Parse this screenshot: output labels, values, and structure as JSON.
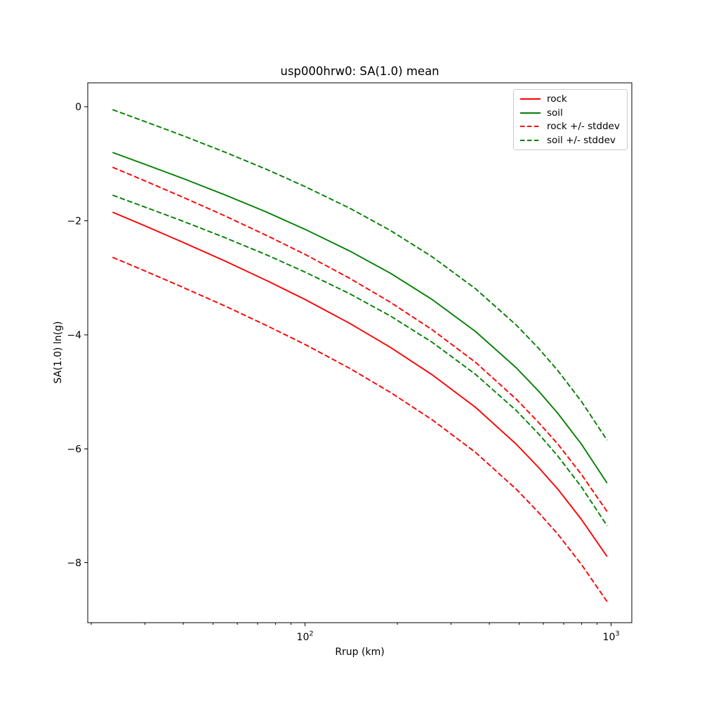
{
  "figure": {
    "title": "usp000hrw0: SA(1.0) mean",
    "xlabel": "Rrup (km)",
    "ylabel": "SA(1.0) ln(g)"
  },
  "chart_data": {
    "type": "line",
    "title": "usp000hrw0: SA(1.0) mean",
    "xlabel": "Rrup (km)",
    "ylabel": "SA(1.0) ln(g)",
    "x_scale": "log",
    "y_scale": "linear",
    "xlim": [
      19.5,
      1168
    ],
    "ylim": [
      -9.05,
      0.42
    ],
    "grid": false,
    "legend_position": "upper right",
    "colors": {
      "rock": "#ff0000",
      "soil": "#008000",
      "spine": "#000000",
      "legend_border": "#cbcbcb"
    },
    "rock_stddev": 0.79,
    "soil_stddev": 0.75,
    "x": [
      23.5,
      30,
      40,
      55,
      75,
      100,
      140,
      190,
      260,
      360,
      490,
      580,
      670,
      800,
      970
    ],
    "series": [
      {
        "id": "rock",
        "legend": "rock",
        "color": "#ff0000",
        "dashed": false,
        "curves": {
          "mean": [
            -1.85,
            -2.09,
            -2.38,
            -2.71,
            -3.05,
            -3.38,
            -3.8,
            -4.22,
            -4.7,
            -5.27,
            -5.92,
            -6.33,
            -6.71,
            -7.24,
            -7.89
          ]
        }
      },
      {
        "id": "soil",
        "legend": "soil",
        "color": "#008000",
        "dashed": false,
        "curves": {
          "mean": [
            -0.8,
            -1.01,
            -1.26,
            -1.55,
            -1.85,
            -2.15,
            -2.53,
            -2.92,
            -3.38,
            -3.94,
            -4.58,
            -4.99,
            -5.38,
            -5.92,
            -6.6
          ]
        }
      },
      {
        "id": "rock-stddev",
        "legend": "rock +/- stddev",
        "color": "#ff0000",
        "dashed": true,
        "curves": {
          "plus": [
            -1.06,
            -1.3,
            -1.59,
            -1.92,
            -2.26,
            -2.59,
            -3.01,
            -3.43,
            -3.91,
            -4.48,
            -5.13,
            -5.54,
            -5.92,
            -6.45,
            -7.1
          ],
          "minus": [
            -2.64,
            -2.88,
            -3.17,
            -3.5,
            -3.84,
            -4.17,
            -4.59,
            -5.01,
            -5.49,
            -6.06,
            -6.71,
            -7.12,
            -7.5,
            -8.03,
            -8.68
          ]
        }
      },
      {
        "id": "soil-stddev",
        "legend": "soil +/- stddev",
        "color": "#008000",
        "dashed": true,
        "curves": {
          "plus": [
            -0.05,
            -0.26,
            -0.51,
            -0.8,
            -1.1,
            -1.4,
            -1.78,
            -2.17,
            -2.63,
            -3.19,
            -3.83,
            -4.24,
            -4.63,
            -5.17,
            -5.85
          ],
          "minus": [
            -1.55,
            -1.76,
            -2.01,
            -2.3,
            -2.6,
            -2.9,
            -3.28,
            -3.67,
            -4.13,
            -4.69,
            -5.33,
            -5.74,
            -6.13,
            -6.67,
            -7.35
          ]
        }
      }
    ],
    "axes": {
      "y_ticks": [
        {
          "value": 0,
          "label": "0"
        },
        {
          "value": -2,
          "label": "−2"
        },
        {
          "value": -4,
          "label": "−4"
        },
        {
          "value": -6,
          "label": "−6"
        },
        {
          "value": -8,
          "label": "−8"
        }
      ],
      "x_major_ticks": [
        {
          "value": 100,
          "mantissa": "10",
          "exponent": "2"
        },
        {
          "value": 1000,
          "mantissa": "10",
          "exponent": "3"
        }
      ],
      "x_minor_ticks": [
        20,
        30,
        40,
        50,
        60,
        70,
        80,
        90,
        200,
        300,
        400,
        500,
        600,
        700,
        800,
        900
      ]
    }
  }
}
